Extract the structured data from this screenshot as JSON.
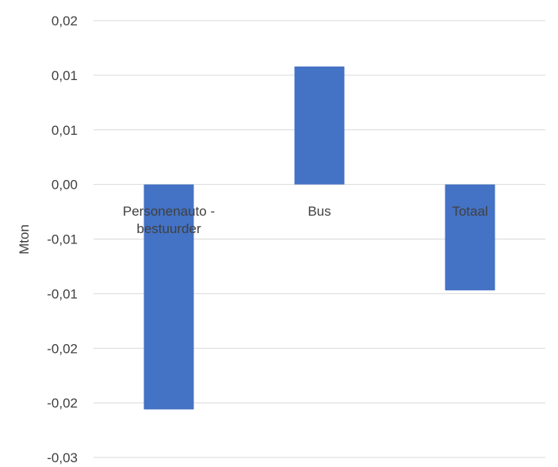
{
  "chart_data": {
    "type": "bar",
    "title": "",
    "ylabel": "Mton",
    "xlabel": "",
    "categories": [
      "Personenauto - bestuurder",
      "Bus",
      "Totaal"
    ],
    "category_lines": [
      [
        "Personenauto -",
        "bestuurder"
      ],
      [
        "Bus"
      ],
      [
        "Totaal"
      ]
    ],
    "values": [
      -0.0206,
      0.0108,
      -0.0097
    ],
    "ylim": [
      -0.025,
      0.015
    ],
    "y_ticks": [
      0.015,
      0.01,
      0.005,
      0.0,
      -0.005,
      -0.01,
      -0.015,
      -0.02,
      -0.025
    ],
    "y_tick_labels": [
      "0,02",
      "0,01",
      "0,01",
      "0,00",
      "-0,01",
      "-0,01",
      "-0,02",
      "-0,02",
      "-0,03"
    ],
    "grid": true,
    "bar_color": "#4472C4",
    "grid_color": "#d9d9d9",
    "text_color": "#404040"
  }
}
